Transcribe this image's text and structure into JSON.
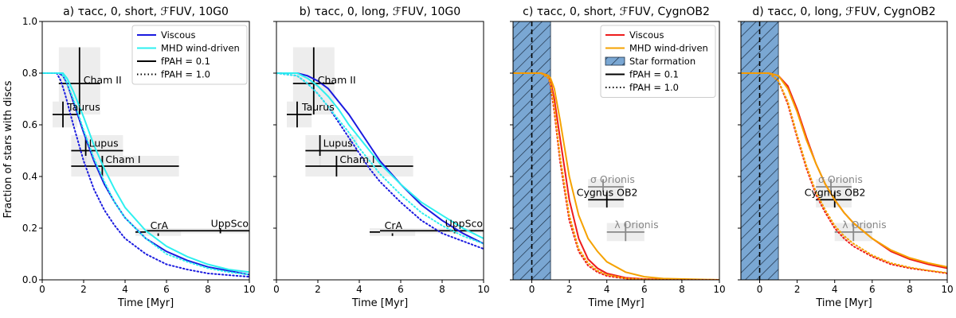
{
  "figure": {
    "ylabel": "Fraction of stars with discs",
    "xlabel": "Time [Myr]"
  },
  "colors": {
    "viscous_blue": "#1a1adf",
    "mhd_cyan": "#2ef0f0",
    "viscous_red": "#ee1c1c",
    "mhd_orange": "#f5a200",
    "sf_fill": "#7aa7d3",
    "obs_black": "#000000",
    "obs_gray": "#888888",
    "obs_box": "#ececec"
  },
  "chart_data": [
    {
      "type": "line",
      "title": "a) τacc, 0, short, ℱFUV, 10G0",
      "xlabel": "Time [Myr]",
      "ylabel": "Fraction of stars with discs",
      "xlim": [
        0,
        10
      ],
      "ylim": [
        0,
        1
      ],
      "xticks": [
        0,
        2,
        4,
        6,
        8,
        10
      ],
      "yticks": [
        0.0,
        0.2,
        0.4,
        0.6,
        0.8,
        1.0
      ],
      "series": [
        {
          "name": "Viscous, fPAH = 0.1",
          "color": "viscous_blue",
          "dash": "solid",
          "x": [
            0,
            0.8,
            1.0,
            1.2,
            1.5,
            2.0,
            2.5,
            3.0,
            3.5,
            4.0,
            5.0,
            6.0,
            7.0,
            8.0,
            9.0,
            10.0
          ],
          "y": [
            0.8,
            0.8,
            0.79,
            0.76,
            0.69,
            0.57,
            0.46,
            0.37,
            0.3,
            0.24,
            0.16,
            0.11,
            0.075,
            0.05,
            0.035,
            0.02
          ]
        },
        {
          "name": "MHD wind-driven, fPAH = 0.1",
          "color": "mhd_cyan",
          "dash": "solid",
          "x": [
            0,
            1.0,
            1.2,
            1.5,
            2.0,
            2.5,
            3.0,
            3.5,
            4.0,
            5.0,
            6.0,
            7.0,
            8.0,
            9.0,
            10.0
          ],
          "y": [
            0.8,
            0.8,
            0.78,
            0.73,
            0.63,
            0.52,
            0.43,
            0.35,
            0.28,
            0.19,
            0.13,
            0.09,
            0.06,
            0.04,
            0.03
          ]
        },
        {
          "name": "Viscous, fPAH = 1.0",
          "color": "viscous_blue",
          "dash": "dotted",
          "x": [
            0,
            0.7,
            0.9,
            1.1,
            1.5,
            2.0,
            2.5,
            3.0,
            3.5,
            4.0,
            5.0,
            6.0,
            7.0,
            8.0,
            9.0,
            10.0
          ],
          "y": [
            0.8,
            0.8,
            0.77,
            0.72,
            0.6,
            0.46,
            0.35,
            0.27,
            0.21,
            0.16,
            0.1,
            0.06,
            0.04,
            0.025,
            0.018,
            0.012
          ]
        },
        {
          "name": "MHD wind-driven, fPAH = 1.0",
          "color": "mhd_cyan",
          "dash": "dotted",
          "x": [
            0,
            0.9,
            1.1,
            1.5,
            2.0,
            2.5,
            3.0,
            3.5,
            4.0,
            5.0,
            6.0,
            7.0,
            8.0,
            9.0,
            10.0
          ],
          "y": [
            0.8,
            0.8,
            0.78,
            0.7,
            0.58,
            0.47,
            0.38,
            0.3,
            0.24,
            0.16,
            0.1,
            0.07,
            0.045,
            0.03,
            0.02
          ]
        }
      ],
      "observations": [
        {
          "name": "Cham II",
          "x": 1.8,
          "y": 0.76,
          "xmin": 0.8,
          "xmax": 2.8,
          "ymin": 0.64,
          "ymax": 0.9,
          "color": "obs_black"
        },
        {
          "name": "Taurus",
          "x": 1.0,
          "y": 0.64,
          "xmin": 0.5,
          "xmax": 1.7,
          "ymin": 0.59,
          "ymax": 0.69,
          "color": "obs_black"
        },
        {
          "name": "Lupus",
          "x": 2.1,
          "y": 0.5,
          "xmin": 1.4,
          "xmax": 3.9,
          "ymin": 0.44,
          "ymax": 0.56,
          "color": "obs_black"
        },
        {
          "name": "Cham I",
          "x": 2.9,
          "y": 0.44,
          "xmin": 1.4,
          "xmax": 6.6,
          "ymin": 0.4,
          "ymax": 0.48,
          "color": "obs_black"
        },
        {
          "name": "CrA",
          "x": 5.6,
          "y": 0.185,
          "xmin": 4.5,
          "xmax": 6.7,
          "ymin": 0.17,
          "ymax": 0.2,
          "color": "obs_black"
        },
        {
          "name": "UppSco",
          "x": 8.6,
          "y": 0.19,
          "xmin": 5.0,
          "xmax": 11.0,
          "ymin": 0.18,
          "ymax": 0.2,
          "color": "obs_black"
        }
      ],
      "legend": {
        "placement": "top-right",
        "entries": [
          {
            "label": "Viscous",
            "kind": "line",
            "color": "viscous_blue",
            "dash": "solid"
          },
          {
            "label": "MHD wind-driven",
            "kind": "line",
            "color": "mhd_cyan",
            "dash": "solid"
          },
          {
            "label": "fPAH = 0.1",
            "kind": "line",
            "color": "obs_black",
            "dash": "solid"
          },
          {
            "label": "fPAH = 1.0",
            "kind": "line",
            "color": "obs_black",
            "dash": "dotted"
          }
        ]
      }
    },
    {
      "type": "line",
      "title": "b) τacc, 0, long, ℱFUV, 10G0",
      "xlabel": "Time [Myr]",
      "ylabel": "",
      "xlim": [
        0,
        10
      ],
      "ylim": [
        0,
        1
      ],
      "xticks": [
        0,
        2,
        4,
        6,
        8,
        10
      ],
      "yticks": [
        0.0,
        0.2,
        0.4,
        0.6,
        0.8,
        1.0
      ],
      "series": [
        {
          "name": "Viscous, fPAH = 0.1",
          "color": "viscous_blue",
          "dash": "solid",
          "x": [
            0,
            1.0,
            1.5,
            2.0,
            2.5,
            3.0,
            3.5,
            4.0,
            4.5,
            5.0,
            6.0,
            7.0,
            8.0,
            9.0,
            10.0
          ],
          "y": [
            0.8,
            0.8,
            0.79,
            0.77,
            0.74,
            0.69,
            0.64,
            0.58,
            0.52,
            0.46,
            0.37,
            0.29,
            0.23,
            0.18,
            0.14
          ]
        },
        {
          "name": "MHD wind-driven, fPAH = 0.1",
          "color": "mhd_cyan",
          "dash": "solid",
          "x": [
            0,
            1.0,
            1.5,
            2.0,
            2.5,
            3.0,
            3.5,
            4.0,
            4.5,
            5.0,
            6.0,
            7.0,
            8.0,
            9.0,
            10.0
          ],
          "y": [
            0.8,
            0.8,
            0.78,
            0.75,
            0.71,
            0.66,
            0.6,
            0.55,
            0.5,
            0.45,
            0.37,
            0.3,
            0.25,
            0.2,
            0.16
          ]
        },
        {
          "name": "Viscous, fPAH = 1.0",
          "color": "viscous_blue",
          "dash": "dotted",
          "x": [
            0,
            1.0,
            1.5,
            2.0,
            2.5,
            3.0,
            3.5,
            4.0,
            4.5,
            5.0,
            6.0,
            7.0,
            8.0,
            9.0,
            10.0
          ],
          "y": [
            0.8,
            0.79,
            0.76,
            0.72,
            0.67,
            0.61,
            0.55,
            0.49,
            0.43,
            0.38,
            0.3,
            0.23,
            0.18,
            0.15,
            0.12
          ]
        },
        {
          "name": "MHD wind-driven, fPAH = 1.0",
          "color": "mhd_cyan",
          "dash": "dotted",
          "x": [
            0,
            1.0,
            1.5,
            2.0,
            2.5,
            3.0,
            3.5,
            4.0,
            4.5,
            5.0,
            6.0,
            7.0,
            8.0,
            9.0,
            10.0
          ],
          "y": [
            0.8,
            0.79,
            0.76,
            0.72,
            0.67,
            0.62,
            0.57,
            0.51,
            0.46,
            0.41,
            0.33,
            0.26,
            0.21,
            0.17,
            0.14
          ]
        }
      ],
      "observations": [
        {
          "name": "Cham II",
          "x": 1.8,
          "y": 0.76,
          "xmin": 0.8,
          "xmax": 2.8,
          "ymin": 0.64,
          "ymax": 0.9,
          "color": "obs_black"
        },
        {
          "name": "Taurus",
          "x": 1.0,
          "y": 0.64,
          "xmin": 0.5,
          "xmax": 1.7,
          "ymin": 0.59,
          "ymax": 0.69,
          "color": "obs_black"
        },
        {
          "name": "Lupus",
          "x": 2.1,
          "y": 0.5,
          "xmin": 1.4,
          "xmax": 3.9,
          "ymin": 0.44,
          "ymax": 0.56,
          "color": "obs_black"
        },
        {
          "name": "Cham I",
          "x": 2.9,
          "y": 0.44,
          "xmin": 1.4,
          "xmax": 6.6,
          "ymin": 0.4,
          "ymax": 0.48,
          "color": "obs_black"
        },
        {
          "name": "CrA",
          "x": 5.6,
          "y": 0.185,
          "xmin": 4.5,
          "xmax": 6.7,
          "ymin": 0.17,
          "ymax": 0.2,
          "color": "obs_black"
        },
        {
          "name": "UppSco",
          "x": 8.6,
          "y": 0.19,
          "xmin": 5.0,
          "xmax": 11.0,
          "ymin": 0.18,
          "ymax": 0.2,
          "color": "obs_black"
        }
      ]
    },
    {
      "type": "line",
      "title": "c) τacc, 0, short, ℱFUV, CygnOB2",
      "xlabel": "Time [Myr]",
      "ylabel": "",
      "xlim": [
        -1,
        10
      ],
      "ylim": [
        0,
        1
      ],
      "xticks": [
        0,
        2,
        4,
        6,
        8,
        10
      ],
      "yticks": [
        0.0,
        0.2,
        0.4,
        0.6,
        0.8,
        1.0
      ],
      "star_formation": {
        "xmin": -1,
        "xmax": 1,
        "marker_x": 0
      },
      "series": [
        {
          "name": "Viscous, fPAH = 0.1",
          "color": "viscous_red",
          "dash": "solid",
          "x": [
            -1,
            0.5,
            0.9,
            1.0,
            1.2,
            1.5,
            2.0,
            2.5,
            3.0,
            3.5,
            4.0,
            5.0,
            6.0,
            7.0,
            10.0
          ],
          "y": [
            0.8,
            0.8,
            0.79,
            0.77,
            0.7,
            0.55,
            0.31,
            0.16,
            0.08,
            0.045,
            0.025,
            0.008,
            0.003,
            0.001,
            0.0
          ]
        },
        {
          "name": "MHD wind-driven, fPAH = 0.1",
          "color": "mhd_orange",
          "dash": "solid",
          "x": [
            -1,
            0.5,
            0.9,
            1.0,
            1.2,
            1.5,
            2.0,
            2.5,
            3.0,
            3.5,
            4.0,
            5.0,
            6.0,
            7.0,
            10.0
          ],
          "y": [
            0.8,
            0.8,
            0.79,
            0.78,
            0.74,
            0.62,
            0.4,
            0.25,
            0.16,
            0.11,
            0.07,
            0.03,
            0.012,
            0.005,
            0.0
          ]
        },
        {
          "name": "Viscous, fPAH = 1.0",
          "color": "viscous_red",
          "dash": "dotted",
          "x": [
            -1,
            0.5,
            0.9,
            1.0,
            1.2,
            1.5,
            2.0,
            2.5,
            3.0,
            3.5,
            4.0,
            5.0,
            6.0,
            7.0,
            10.0
          ],
          "y": [
            0.8,
            0.8,
            0.78,
            0.75,
            0.65,
            0.46,
            0.23,
            0.11,
            0.055,
            0.03,
            0.015,
            0.005,
            0.002,
            0.0,
            0.0
          ]
        },
        {
          "name": "MHD wind-driven, fPAH = 1.0",
          "color": "mhd_orange",
          "dash": "dotted",
          "x": [
            -1,
            0.5,
            0.9,
            1.0,
            1.2,
            1.5,
            2.0,
            2.5,
            3.0,
            3.5,
            4.0,
            5.0,
            6.0,
            7.0,
            10.0
          ],
          "y": [
            0.8,
            0.8,
            0.78,
            0.76,
            0.67,
            0.48,
            0.25,
            0.12,
            0.065,
            0.035,
            0.02,
            0.006,
            0.002,
            0.0,
            0.0
          ]
        }
      ],
      "observations": [
        {
          "name": "σ Orionis",
          "x": 3.8,
          "y": 0.36,
          "xmin": 3.0,
          "xmax": 4.9,
          "ymin": 0.33,
          "ymax": 0.39,
          "color": "obs_gray"
        },
        {
          "name": "Cygnus OB2",
          "x": 4.0,
          "y": 0.31,
          "xmin": 3.0,
          "xmax": 4.9,
          "ymin": 0.28,
          "ymax": 0.34,
          "color": "obs_black"
        },
        {
          "name": "λ Orionis",
          "x": 5.0,
          "y": 0.185,
          "xmin": 4.0,
          "xmax": 6.0,
          "ymin": 0.15,
          "ymax": 0.22,
          "color": "obs_gray"
        }
      ],
      "legend": {
        "placement": "top-right",
        "entries": [
          {
            "label": "Viscous",
            "kind": "line",
            "color": "viscous_red",
            "dash": "solid"
          },
          {
            "label": "MHD wind-driven",
            "kind": "line",
            "color": "mhd_orange",
            "dash": "solid"
          },
          {
            "label": "Star formation",
            "kind": "patch",
            "color": "sf_fill",
            "dash": "solid"
          },
          {
            "label": "fPAH = 0.1",
            "kind": "line",
            "color": "obs_black",
            "dash": "solid"
          },
          {
            "label": "fPAH = 1.0",
            "kind": "line",
            "color": "obs_black",
            "dash": "dotted"
          }
        ]
      }
    },
    {
      "type": "line",
      "title": "d) τacc, 0, long, ℱFUV, CygnOB2",
      "xlabel": "Time [Myr]",
      "ylabel": "",
      "xlim": [
        -1,
        10
      ],
      "ylim": [
        0,
        1
      ],
      "xticks": [
        0,
        2,
        4,
        6,
        8,
        10
      ],
      "yticks": [
        0.0,
        0.2,
        0.4,
        0.6,
        0.8,
        1.0
      ],
      "star_formation": {
        "xmin": -1,
        "xmax": 1,
        "marker_x": 0
      },
      "series": [
        {
          "name": "Viscous, fPAH = 0.1",
          "color": "viscous_red",
          "dash": "solid",
          "x": [
            -1,
            0.5,
            1.0,
            1.5,
            2.0,
            2.5,
            3.0,
            3.5,
            4.0,
            4.5,
            5.0,
            6.0,
            7.0,
            8.0,
            9.0,
            10.0
          ],
          "y": [
            0.8,
            0.8,
            0.79,
            0.75,
            0.66,
            0.55,
            0.45,
            0.37,
            0.31,
            0.26,
            0.22,
            0.16,
            0.11,
            0.08,
            0.06,
            0.045
          ]
        },
        {
          "name": "MHD wind-driven, fPAH = 0.1",
          "color": "mhd_orange",
          "dash": "solid",
          "x": [
            -1,
            0.5,
            1.0,
            1.5,
            2.0,
            2.5,
            3.0,
            3.5,
            4.0,
            4.5,
            5.0,
            6.0,
            7.0,
            8.0,
            9.0,
            10.0
          ],
          "y": [
            0.8,
            0.8,
            0.79,
            0.74,
            0.65,
            0.54,
            0.45,
            0.37,
            0.31,
            0.26,
            0.22,
            0.16,
            0.115,
            0.085,
            0.065,
            0.05
          ]
        },
        {
          "name": "Viscous, fPAH = 1.0",
          "color": "viscous_red",
          "dash": "dotted",
          "x": [
            -1,
            0.5,
            1.0,
            1.5,
            2.0,
            2.5,
            3.0,
            3.5,
            4.0,
            4.5,
            5.0,
            6.0,
            7.0,
            8.0,
            9.0,
            10.0
          ],
          "y": [
            0.8,
            0.8,
            0.77,
            0.68,
            0.55,
            0.43,
            0.33,
            0.26,
            0.2,
            0.16,
            0.13,
            0.09,
            0.06,
            0.045,
            0.035,
            0.025
          ]
        },
        {
          "name": "MHD wind-driven, fPAH = 1.0",
          "color": "mhd_orange",
          "dash": "dotted",
          "x": [
            -1,
            0.5,
            1.0,
            1.5,
            2.0,
            2.5,
            3.0,
            3.5,
            4.0,
            4.5,
            5.0,
            6.0,
            7.0,
            8.0,
            9.0,
            10.0
          ],
          "y": [
            0.8,
            0.8,
            0.77,
            0.69,
            0.56,
            0.44,
            0.34,
            0.27,
            0.21,
            0.17,
            0.14,
            0.095,
            0.065,
            0.048,
            0.036,
            0.027
          ]
        }
      ],
      "observations": [
        {
          "name": "σ Orionis",
          "x": 3.8,
          "y": 0.36,
          "xmin": 3.0,
          "xmax": 4.9,
          "ymin": 0.33,
          "ymax": 0.39,
          "color": "obs_gray"
        },
        {
          "name": "Cygnus OB2",
          "x": 4.0,
          "y": 0.31,
          "xmin": 3.0,
          "xmax": 4.9,
          "ymin": 0.28,
          "ymax": 0.34,
          "color": "obs_black"
        },
        {
          "name": "λ Orionis",
          "x": 5.0,
          "y": 0.185,
          "xmin": 4.0,
          "xmax": 6.0,
          "ymin": 0.15,
          "ymax": 0.22,
          "color": "obs_gray"
        }
      ]
    }
  ]
}
